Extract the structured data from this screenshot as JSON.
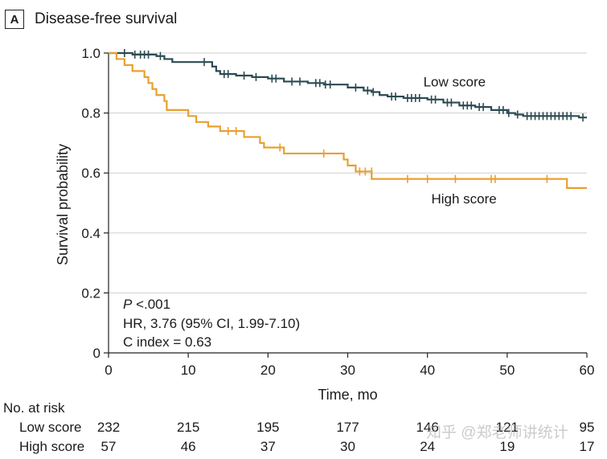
{
  "panel": {
    "label": "A",
    "title": "Disease-free survival"
  },
  "chart_data": {
    "type": "line",
    "subtype": "kaplan-meier",
    "title": "Disease-free survival",
    "xlabel": "Time, mo",
    "ylabel": "Survival probability",
    "xlim": [
      0,
      60
    ],
    "ylim": [
      0,
      1.0
    ],
    "xticks": [
      0,
      10,
      20,
      30,
      40,
      50,
      60
    ],
    "yticks": [
      0,
      0.2,
      0.4,
      0.6,
      0.8,
      1.0
    ],
    "ytick_labels": [
      "0",
      "0.2",
      "0.4",
      "0.6",
      "0.8",
      "1.0"
    ],
    "grid": "horizontal",
    "series": [
      {
        "name": "Low score",
        "color": "#2c4a52",
        "steps": [
          [
            0,
            1.0
          ],
          [
            3,
            0.995
          ],
          [
            6,
            0.99
          ],
          [
            7,
            0.98
          ],
          [
            8,
            0.97
          ],
          [
            13,
            0.955
          ],
          [
            13.5,
            0.94
          ],
          [
            14,
            0.93
          ],
          [
            16,
            0.925
          ],
          [
            18,
            0.92
          ],
          [
            20,
            0.915
          ],
          [
            22,
            0.905
          ],
          [
            25,
            0.9
          ],
          [
            27,
            0.895
          ],
          [
            30,
            0.885
          ],
          [
            32,
            0.875
          ],
          [
            33,
            0.87
          ],
          [
            34,
            0.86
          ],
          [
            35,
            0.855
          ],
          [
            37,
            0.85
          ],
          [
            40,
            0.845
          ],
          [
            42,
            0.835
          ],
          [
            44,
            0.825
          ],
          [
            46,
            0.82
          ],
          [
            48,
            0.81
          ],
          [
            50,
            0.8
          ],
          [
            51,
            0.795
          ],
          [
            52,
            0.79
          ],
          [
            59,
            0.785
          ],
          [
            60,
            0.785
          ]
        ],
        "censors": [
          [
            2,
            1.0
          ],
          [
            3.3,
            0.995
          ],
          [
            4,
            0.995
          ],
          [
            4.5,
            0.995
          ],
          [
            5,
            0.995
          ],
          [
            6.5,
            0.99
          ],
          [
            12,
            0.97
          ],
          [
            14.5,
            0.93
          ],
          [
            15,
            0.93
          ],
          [
            17,
            0.925
          ],
          [
            18.5,
            0.92
          ],
          [
            20.5,
            0.915
          ],
          [
            21,
            0.915
          ],
          [
            23,
            0.905
          ],
          [
            24,
            0.905
          ],
          [
            26,
            0.9
          ],
          [
            26.5,
            0.9
          ],
          [
            27.2,
            0.895
          ],
          [
            27.8,
            0.895
          ],
          [
            31,
            0.885
          ],
          [
            32.5,
            0.875
          ],
          [
            33.2,
            0.87
          ],
          [
            35.5,
            0.855
          ],
          [
            36,
            0.855
          ],
          [
            37.5,
            0.85
          ],
          [
            38,
            0.85
          ],
          [
            38.5,
            0.85
          ],
          [
            39,
            0.85
          ],
          [
            40.5,
            0.845
          ],
          [
            41,
            0.845
          ],
          [
            42.5,
            0.835
          ],
          [
            43,
            0.835
          ],
          [
            44.5,
            0.825
          ],
          [
            45,
            0.825
          ],
          [
            45.5,
            0.825
          ],
          [
            46.5,
            0.82
          ],
          [
            47,
            0.82
          ],
          [
            49,
            0.81
          ],
          [
            49.5,
            0.81
          ],
          [
            50.2,
            0.8
          ],
          [
            51.3,
            0.795
          ],
          [
            52.5,
            0.79
          ],
          [
            53,
            0.79
          ],
          [
            53.5,
            0.79
          ],
          [
            54,
            0.79
          ],
          [
            54.5,
            0.79
          ],
          [
            55,
            0.79
          ],
          [
            55.5,
            0.79
          ],
          [
            56,
            0.79
          ],
          [
            56.5,
            0.79
          ],
          [
            57,
            0.79
          ],
          [
            57.5,
            0.79
          ],
          [
            58,
            0.79
          ],
          [
            59.5,
            0.785
          ]
        ]
      },
      {
        "name": "High score",
        "color": "#e8a030",
        "steps": [
          [
            0,
            1.0
          ],
          [
            1,
            0.98
          ],
          [
            2,
            0.96
          ],
          [
            3,
            0.94
          ],
          [
            4.5,
            0.92
          ],
          [
            5,
            0.9
          ],
          [
            5.5,
            0.88
          ],
          [
            6,
            0.86
          ],
          [
            7,
            0.84
          ],
          [
            7.3,
            0.81
          ],
          [
            10,
            0.79
          ],
          [
            11,
            0.77
          ],
          [
            12.5,
            0.755
          ],
          [
            14,
            0.74
          ],
          [
            17,
            0.72
          ],
          [
            19,
            0.7
          ],
          [
            19.5,
            0.685
          ],
          [
            22,
            0.665
          ],
          [
            29.5,
            0.645
          ],
          [
            30,
            0.625
          ],
          [
            31,
            0.605
          ],
          [
            33,
            0.58
          ],
          [
            57.5,
            0.55
          ],
          [
            60,
            0.55
          ]
        ],
        "censors": [
          [
            15,
            0.74
          ],
          [
            16,
            0.74
          ],
          [
            21.5,
            0.685
          ],
          [
            27,
            0.665
          ],
          [
            31.5,
            0.605
          ],
          [
            32.2,
            0.605
          ],
          [
            33,
            0.605
          ],
          [
            37.5,
            0.58
          ],
          [
            40,
            0.58
          ],
          [
            43.5,
            0.58
          ],
          [
            48,
            0.58
          ],
          [
            48.5,
            0.58
          ],
          [
            55,
            0.58
          ]
        ]
      }
    ],
    "annotations": {
      "p_prefix": "P",
      "p_value": " <.001",
      "hr": "HR, 3.76 (95% CI, 1.99-7.10)",
      "c_index": "C index = 0.63"
    },
    "series_labels": [
      {
        "text": "Low score",
        "x": 41,
        "y": 0.905
      },
      {
        "text": "High score",
        "x": 42,
        "y": 0.515
      }
    ]
  },
  "risk_table": {
    "header": "No. at risk",
    "time_points": [
      0,
      10,
      20,
      30,
      40,
      50,
      60
    ],
    "rows": [
      {
        "label": "Low score",
        "values": [
          "232",
          "215",
          "195",
          "177",
          "146",
          "121",
          "95"
        ]
      },
      {
        "label": "High score",
        "values": [
          "57",
          "46",
          "37",
          "30",
          "24",
          "19",
          "17"
        ]
      }
    ]
  },
  "watermark": "知乎 @郑老师讲统计"
}
